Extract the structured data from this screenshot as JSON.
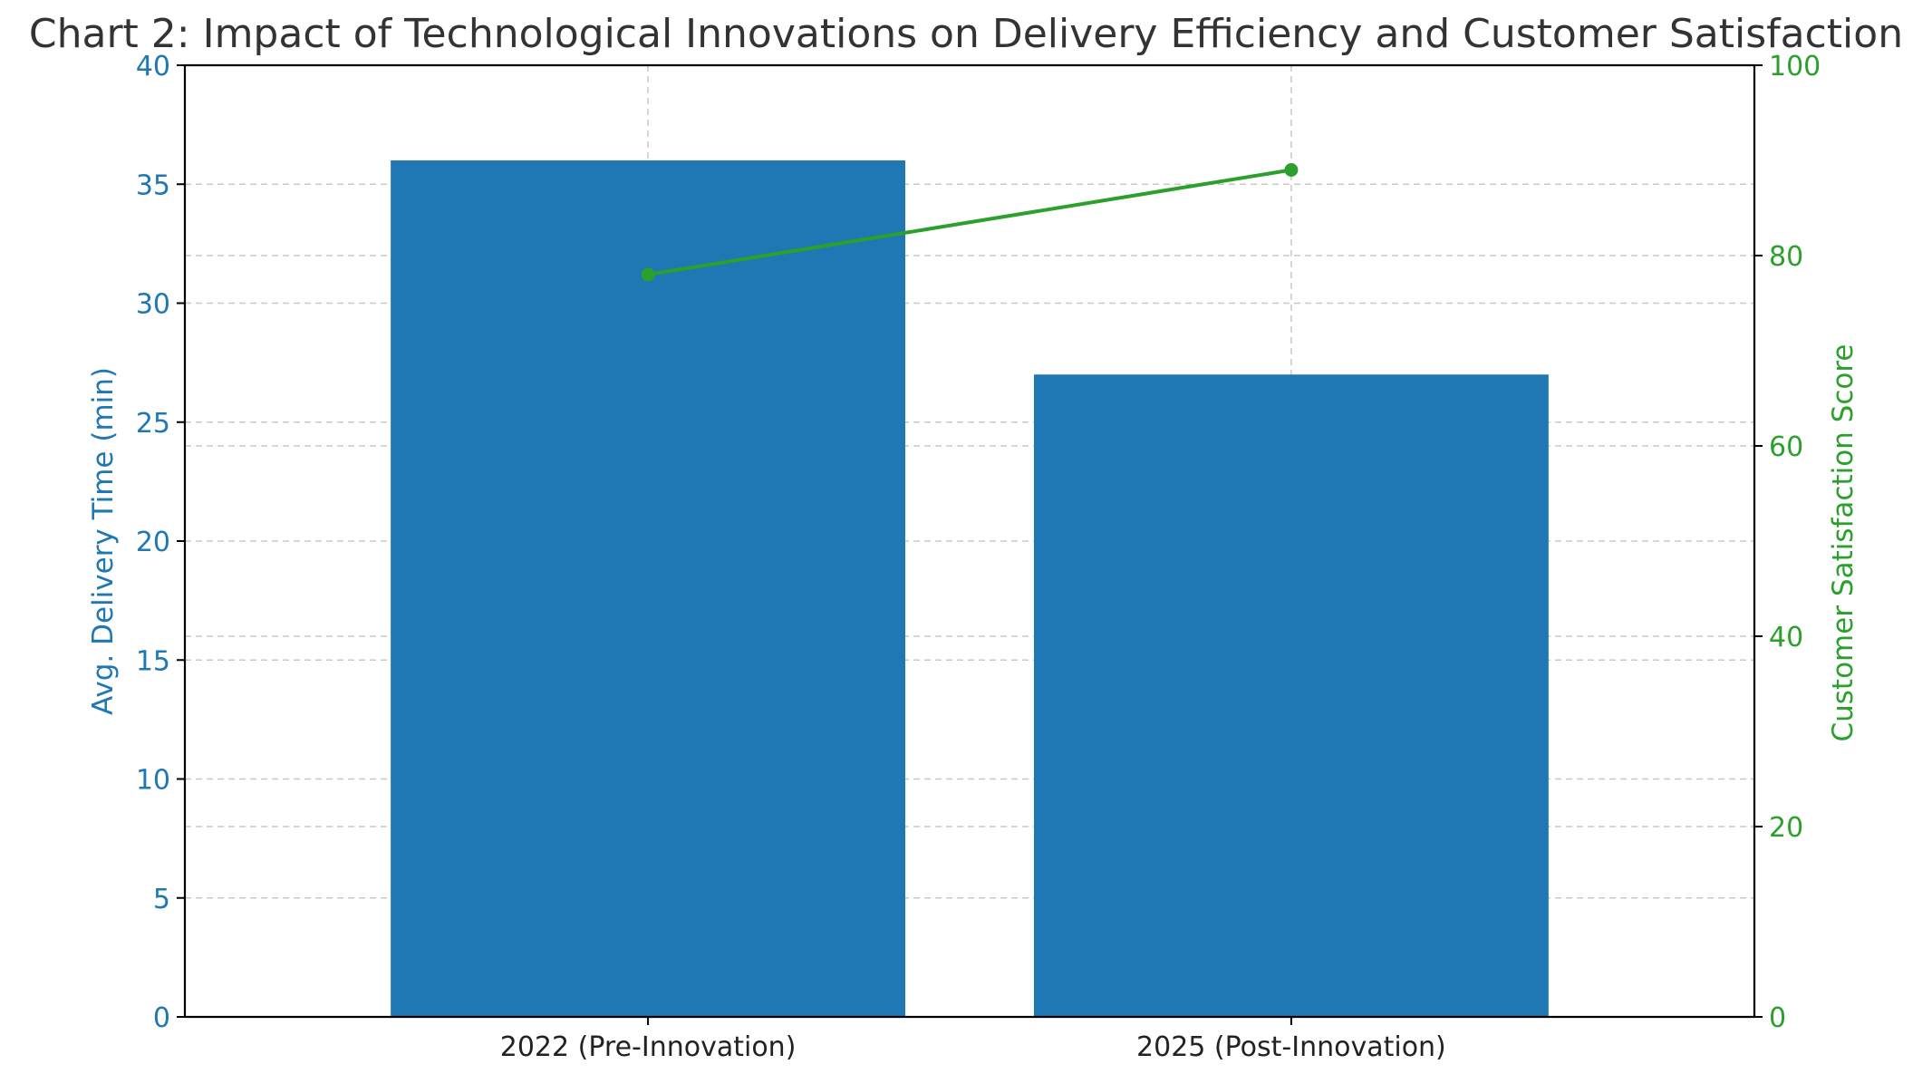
{
  "chart_data": {
    "type": "bar",
    "title": "Chart 2: Impact of Technological Innovations on Delivery Efficiency and Customer Satisfaction",
    "categories": [
      "2022 (Pre-Innovation)",
      "2025 (Post-Innovation)"
    ],
    "series": [
      {
        "name": "Avg. Delivery Time (min)",
        "type": "bar",
        "axis": "left",
        "values": [
          36,
          27
        ],
        "color": "#1f77b4"
      },
      {
        "name": "Customer Satisfaction Score",
        "type": "line",
        "axis": "right",
        "values": [
          78,
          89
        ],
        "color": "#2ca02c"
      }
    ],
    "ylabel": "Avg. Delivery Time (min)",
    "ylabel_right": "Customer Satisfaction Score",
    "xlabel": "",
    "ylim": [
      0,
      40
    ],
    "ylim_right": [
      0,
      100
    ],
    "yticks": [
      "0",
      "5",
      "10",
      "15",
      "20",
      "25",
      "30",
      "35",
      "40"
    ],
    "yticks_right": [
      "0",
      "20",
      "40",
      "60",
      "80",
      "100"
    ],
    "grid": true,
    "legend": "none"
  }
}
